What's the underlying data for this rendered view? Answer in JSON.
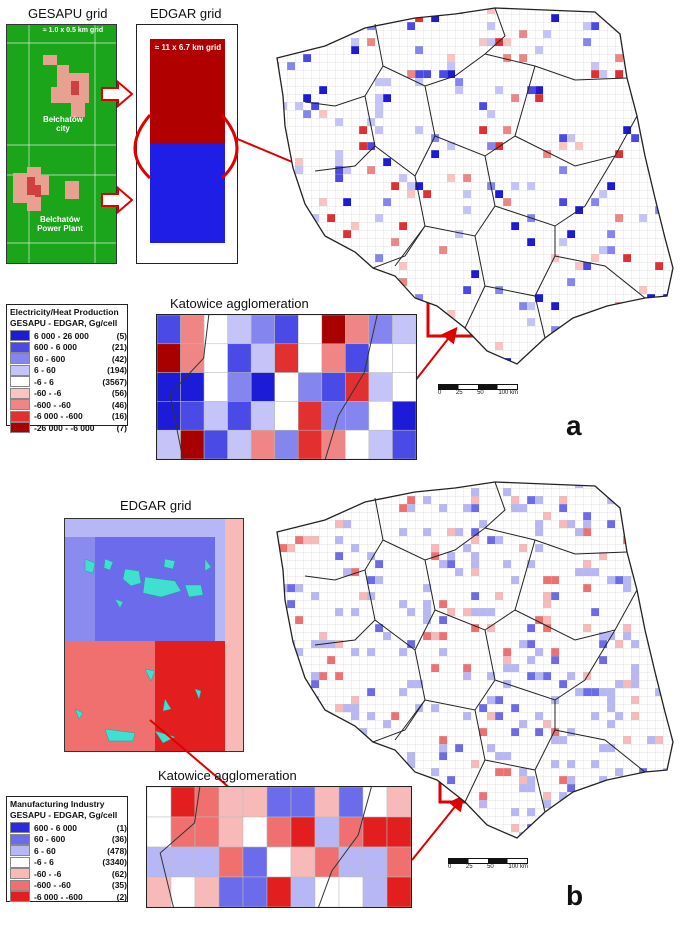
{
  "panel_a": {
    "letter": "a",
    "gesapu_title": "GESAPU grid",
    "edgar_title": "EDGAR grid",
    "gesapu_grid_size": "≈ 1.0 x 0.5 km grid",
    "edgar_grid_size": "≈ 11 x 6.7 km grid",
    "city_label": "Bełchatów city",
    "plant_label": "Bełchatów Power Plant",
    "inset_title": "Katowice agglomeration",
    "legend": {
      "title1": "Electricity/Heat Production",
      "title2": "GESAPU - EDGAR, Gg/cell",
      "rows": [
        {
          "range": "6 000 - 26 000",
          "count": "(5)",
          "color": "#1c1cd8"
        },
        {
          "range": "600 - 6 000",
          "count": "(21)",
          "color": "#4a4ae6"
        },
        {
          "range": "60 - 600",
          "count": "(42)",
          "color": "#8585f0"
        },
        {
          "range": "6 - 60",
          "count": "(194)",
          "color": "#c4c4f8"
        },
        {
          "range": "-6 - 6",
          "count": "(3567)",
          "color": "#ffffff"
        },
        {
          "range": "-60 - -6",
          "count": "(56)",
          "color": "#f8c4c4"
        },
        {
          "range": "-600 - -60",
          "count": "(46)",
          "color": "#f08585"
        },
        {
          "range": "-6 000 - -600",
          "count": "(16)",
          "color": "#e23030"
        },
        {
          "range": "-26 000 - -6 000",
          "count": "(7)",
          "color": "#a80000"
        }
      ]
    },
    "scale": [
      "0",
      "25",
      "50",
      "100 km"
    ]
  },
  "panel_b": {
    "letter": "b",
    "edgar_title": "EDGAR grid",
    "inset_title": "Katowice agglomeration",
    "legend": {
      "title1": "Manufacturing Industry",
      "title2": "GESAPU - EDGAR, Gg/cell",
      "rows": [
        {
          "range": "600 - 6 000",
          "count": "(1)",
          "color": "#2a2ae0"
        },
        {
          "range": "60 - 600",
          "count": "(36)",
          "color": "#6b6bec"
        },
        {
          "range": "6 - 60",
          "count": "(478)",
          "color": "#b7b7f6"
        },
        {
          "range": "-6 - 6",
          "count": "(3340)",
          "color": "#ffffff"
        },
        {
          "range": "-60 - -6",
          "count": "(62)",
          "color": "#f8b9b9"
        },
        {
          "range": "-600 - -60",
          "count": "(35)",
          "color": "#f07070"
        },
        {
          "range": "-6 000 - -600",
          "count": "(2)",
          "color": "#e21e1e"
        }
      ]
    },
    "scale": [
      "0",
      "25",
      "50",
      "100 km"
    ]
  },
  "colors": {
    "green": "#1aa51a",
    "red_grid": "#b00000",
    "blue_grid": "#1e1ee6",
    "arrow": "#e00000",
    "cyan": "#40e0d0"
  }
}
